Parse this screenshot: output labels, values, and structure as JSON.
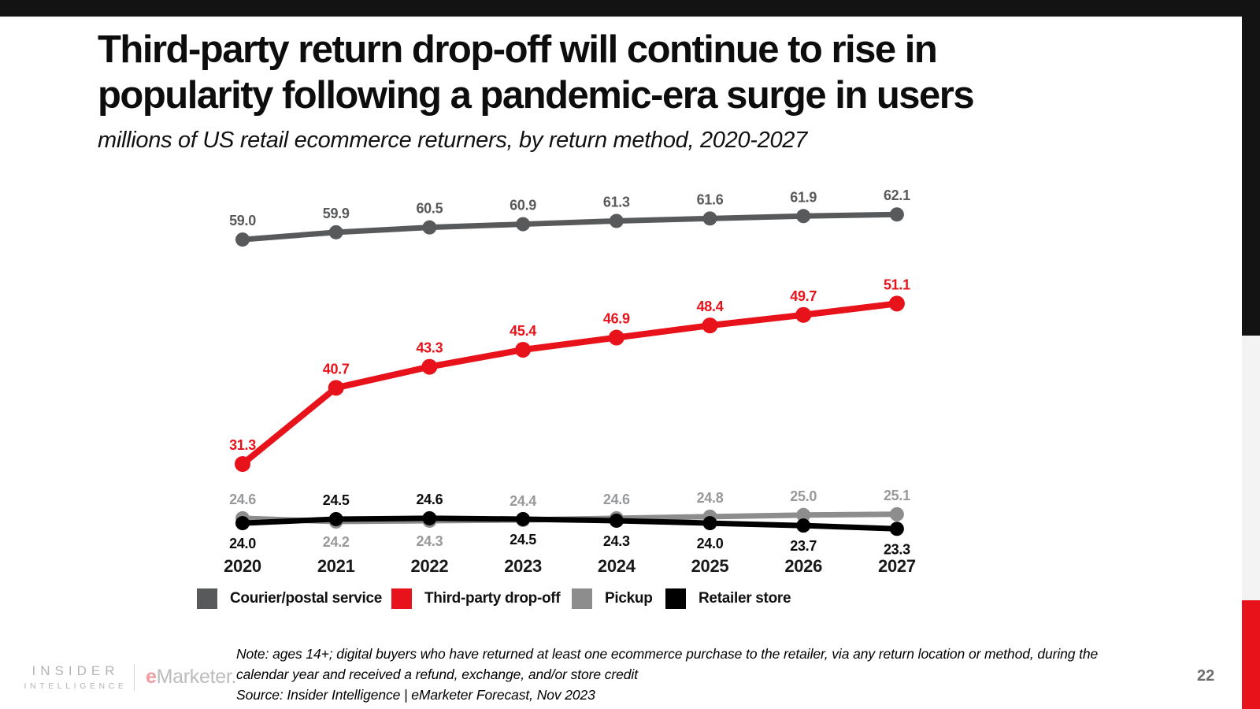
{
  "header": {
    "title_line1": "Third-party return drop-off will continue to rise in",
    "title_line2": "popularity following a pandemic-era surge in users",
    "subtitle": "millions of US retail ecommerce returners, by return method, 2020-2027"
  },
  "chart_data": {
    "type": "line",
    "x_labels": [
      "2020",
      "2021",
      "2022",
      "2023",
      "2024",
      "2025",
      "2026",
      "2027"
    ],
    "ylim": [
      23.3,
      62.1
    ],
    "grid": false,
    "legend_position": "bottom",
    "series": [
      {
        "name": "Courier/postal service",
        "color": "#58595b",
        "label_color": "#58595b",
        "values": [
          59.0,
          59.9,
          60.5,
          60.9,
          61.3,
          61.6,
          61.9,
          62.1
        ],
        "label_sides": [
          "above",
          "above",
          "above",
          "above",
          "above",
          "above",
          "above",
          "above"
        ],
        "stroke_width": 7,
        "dot_radius": 9
      },
      {
        "name": "Third-party drop-off",
        "color": "#e8121b",
        "label_color": "#e8121b",
        "values": [
          31.3,
          40.7,
          43.3,
          45.4,
          46.9,
          48.4,
          49.7,
          51.1
        ],
        "label_sides": [
          "above",
          "above",
          "above",
          "above",
          "above",
          "above",
          "above",
          "above"
        ],
        "stroke_width": 8,
        "dot_radius": 10
      },
      {
        "name": "Pickup",
        "color": "#8d8d8d",
        "label_color": "#98999b",
        "values": [
          24.6,
          24.2,
          24.3,
          24.4,
          24.6,
          24.8,
          25.0,
          25.1
        ],
        "label_sides": [
          "above",
          "below",
          "below",
          "above",
          "above",
          "above",
          "above",
          "above"
        ],
        "stroke_width": 7,
        "dot_radius": 9
      },
      {
        "name": "Retailer store",
        "color": "#000000",
        "label_color": "#0d0d0d",
        "values": [
          24.0,
          24.5,
          24.6,
          24.5,
          24.3,
          24.0,
          23.7,
          23.3
        ],
        "label_sides": [
          "below",
          "above",
          "above",
          "below",
          "below",
          "below",
          "below",
          "below"
        ],
        "stroke_width": 7,
        "dot_radius": 9
      }
    ]
  },
  "footnote": {
    "note_line1": "Note: ages 14+; digital buyers who have returned at least one ecommerce purchase to the retailer, via any return location or method, during the",
    "note_line2": "calendar year and received a refund, exchange, and/or store credit",
    "source": "Source: Insider Intelligence | eMarketer Forecast, Nov 2023"
  },
  "branding": {
    "insider_top": "INSIDER",
    "insider_bottom": "INTELLIGENCE",
    "emarketer_e": "e",
    "emarketer_rest": "Marketer."
  },
  "page_number": "22",
  "colors": {
    "top_bar": "#131313",
    "strip_black": "#131313",
    "strip_gray": "#f3f3f4",
    "strip_red": "#e8121b"
  }
}
